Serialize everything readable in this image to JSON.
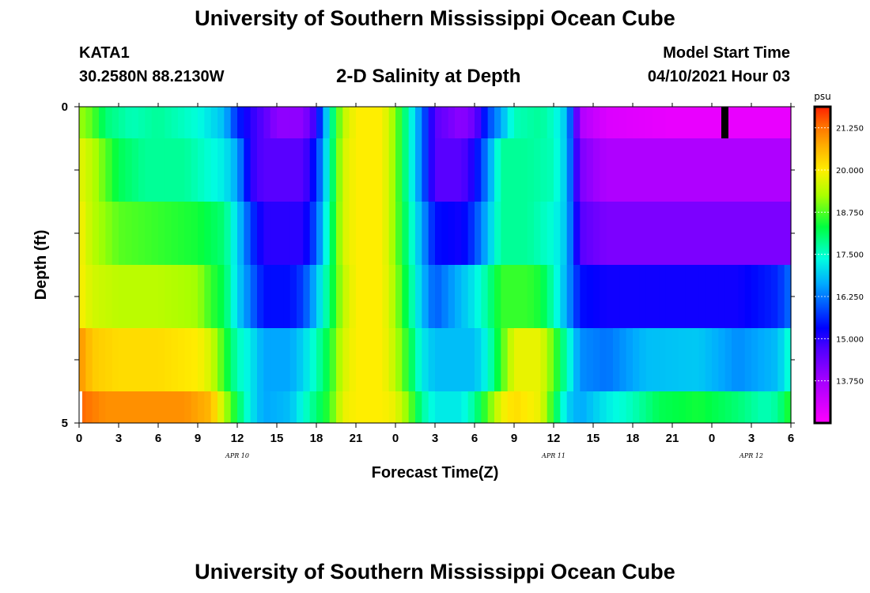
{
  "header": {
    "title": "University of Southern Mississippi Ocean Cube",
    "station": "KATA1",
    "coordinates": "30.2580N  88.2130W",
    "plot_title": "2-D Salinity at Depth",
    "start_label": "Model Start Time",
    "start_time": "04/10/2021 Hour 03"
  },
  "footer": {
    "title": "University of Southern Mississippi Ocean Cube"
  },
  "chart_data": {
    "type": "heatmap",
    "title": "2-D Salinity at Depth",
    "xlabel": "Forecast Time(Z)",
    "ylabel": "Depth (ft)",
    "x_ticks": [
      "0",
      "3",
      "6",
      "9",
      "12",
      "15",
      "18",
      "21",
      "0",
      "3",
      "6",
      "9",
      "12",
      "15",
      "18",
      "21",
      "0",
      "3",
      "6"
    ],
    "date_labels": [
      {
        "label": "APR  10",
        "hour_index": 12
      },
      {
        "label": "APR  11",
        "hour_index": 36
      },
      {
        "label": "APR  12",
        "hour_index": 51
      }
    ],
    "y_ticks": [
      "0",
      "5"
    ],
    "ylim": [
      0,
      5
    ],
    "xlim_hours": [
      0,
      54
    ],
    "colorbar": {
      "unit": "psu",
      "min": 12.5,
      "max": 21.875,
      "tick_labels": [
        "21.250",
        "20.000",
        "18.750",
        "17.500",
        "16.250",
        "15.000",
        "13.750"
      ],
      "tick_values": [
        21.25,
        20.0,
        18.75,
        17.5,
        16.25,
        15.0,
        13.75
      ]
    },
    "layers": [
      {
        "depth_range": "0-0.5",
        "key": [
          [
            0,
            19.2
          ],
          [
            1,
            18.8
          ],
          [
            2,
            18.0
          ],
          [
            4,
            17.6
          ],
          [
            6,
            17.8
          ],
          [
            9,
            17.4
          ],
          [
            11,
            16.8
          ],
          [
            12,
            15.6
          ],
          [
            13,
            15.0
          ],
          [
            14,
            14.6
          ],
          [
            15,
            14.0
          ],
          [
            17,
            14.0
          ],
          [
            18,
            15.0
          ],
          [
            19,
            17.5
          ],
          [
            20,
            19.4
          ],
          [
            21,
            20.0
          ],
          [
            23,
            20.0
          ],
          [
            24,
            19.0
          ],
          [
            25,
            17.6
          ],
          [
            26,
            16.2
          ],
          [
            27,
            14.6
          ],
          [
            29,
            14.0
          ],
          [
            30,
            14.4
          ],
          [
            31,
            15.8
          ],
          [
            32,
            16.6
          ],
          [
            33,
            17.6
          ],
          [
            35,
            17.8
          ],
          [
            36,
            17.5
          ],
          [
            37,
            16.8
          ],
          [
            37.6,
            15.0
          ],
          [
            38,
            13.6
          ],
          [
            40,
            13.0
          ],
          [
            45,
            12.8
          ],
          [
            49,
            12.8
          ],
          [
            54,
            12.8
          ]
        ]
      },
      {
        "depth_range": "0.5-1.5",
        "key": [
          [
            0,
            19.8
          ],
          [
            1,
            19.4
          ],
          [
            2,
            18.8
          ],
          [
            3,
            18.2
          ],
          [
            5,
            17.8
          ],
          [
            8,
            17.8
          ],
          [
            11,
            17.2
          ],
          [
            12,
            16.6
          ],
          [
            13,
            15.0
          ],
          [
            14,
            14.6
          ],
          [
            17,
            14.6
          ],
          [
            18,
            15.6
          ],
          [
            19,
            17.6
          ],
          [
            20,
            19.6
          ],
          [
            21,
            20.0
          ],
          [
            23,
            20.0
          ],
          [
            24,
            19.0
          ],
          [
            25,
            17.6
          ],
          [
            26,
            16.2
          ],
          [
            27,
            14.6
          ],
          [
            29,
            14.6
          ],
          [
            30,
            15.2
          ],
          [
            31,
            16.4
          ],
          [
            32,
            17.8
          ],
          [
            34,
            17.8
          ],
          [
            36,
            17.6
          ],
          [
            37,
            16.8
          ],
          [
            38,
            14.2
          ],
          [
            40,
            13.6
          ],
          [
            54,
            13.6
          ]
        ]
      },
      {
        "depth_range": "1.5-2.5",
        "key": [
          [
            0,
            20.0
          ],
          [
            1,
            19.4
          ],
          [
            3,
            18.8
          ],
          [
            6,
            18.6
          ],
          [
            9,
            18.4
          ],
          [
            11,
            18.0
          ],
          [
            12,
            17.0
          ],
          [
            13,
            15.8
          ],
          [
            14,
            15.0
          ],
          [
            17,
            15.0
          ],
          [
            18,
            16.0
          ],
          [
            19,
            17.8
          ],
          [
            20,
            19.6
          ],
          [
            21,
            20.0
          ],
          [
            23,
            20.0
          ],
          [
            24,
            19.0
          ],
          [
            25,
            17.8
          ],
          [
            26,
            16.6
          ],
          [
            27,
            15.4
          ],
          [
            29,
            15.2
          ],
          [
            30,
            15.8
          ],
          [
            31,
            16.8
          ],
          [
            32,
            17.8
          ],
          [
            34,
            17.8
          ],
          [
            36,
            17.4
          ],
          [
            37,
            16.8
          ],
          [
            38,
            14.6
          ],
          [
            40,
            14.2
          ],
          [
            54,
            14.2
          ]
        ]
      },
      {
        "depth_range": "2.5-3.5",
        "key": [
          [
            0,
            20.0
          ],
          [
            1,
            19.6
          ],
          [
            3,
            19.4
          ],
          [
            6,
            19.4
          ],
          [
            9,
            19.2
          ],
          [
            10,
            18.6
          ],
          [
            11,
            18.2
          ],
          [
            12,
            17.0
          ],
          [
            13,
            16.2
          ],
          [
            14,
            15.4
          ],
          [
            16,
            15.4
          ],
          [
            17,
            15.8
          ],
          [
            18,
            16.8
          ],
          [
            19,
            18.0
          ],
          [
            20,
            19.4
          ],
          [
            21,
            20.0
          ],
          [
            23,
            20.0
          ],
          [
            24,
            19.2
          ],
          [
            25,
            18.0
          ],
          [
            26,
            16.8
          ],
          [
            27,
            16.0
          ],
          [
            28,
            16.4
          ],
          [
            29,
            16.8
          ],
          [
            30,
            17.2
          ],
          [
            31,
            17.8
          ],
          [
            32,
            18.6
          ],
          [
            34,
            18.6
          ],
          [
            35,
            18.4
          ],
          [
            36,
            17.6
          ],
          [
            37,
            16.6
          ],
          [
            38,
            15.4
          ],
          [
            40,
            15.2
          ],
          [
            50,
            15.2
          ],
          [
            53,
            15.6
          ],
          [
            54,
            16.2
          ]
        ]
      },
      {
        "depth_range": "3.5-4.5",
        "key": [
          [
            0,
            21.0
          ],
          [
            1,
            20.4
          ],
          [
            3,
            20.2
          ],
          [
            6,
            20.2
          ],
          [
            9,
            20.0
          ],
          [
            10,
            19.6
          ],
          [
            11,
            18.6
          ],
          [
            12,
            17.6
          ],
          [
            13,
            17.2
          ],
          [
            14,
            16.6
          ],
          [
            16,
            16.6
          ],
          [
            17,
            17.0
          ],
          [
            18,
            17.6
          ],
          [
            19,
            18.4
          ],
          [
            20,
            19.6
          ],
          [
            21,
            20.0
          ],
          [
            23,
            20.0
          ],
          [
            24,
            19.4
          ],
          [
            25,
            18.4
          ],
          [
            26,
            17.2
          ],
          [
            27,
            16.8
          ],
          [
            30,
            16.8
          ],
          [
            31,
            17.4
          ],
          [
            32,
            18.6
          ],
          [
            33,
            19.8
          ],
          [
            35,
            19.8
          ],
          [
            36,
            18.8
          ],
          [
            37,
            17.6
          ],
          [
            38,
            16.4
          ],
          [
            40,
            16.2
          ],
          [
            43,
            16.8
          ],
          [
            47,
            16.9
          ],
          [
            50,
            16.4
          ],
          [
            53,
            16.8
          ],
          [
            54,
            17.6
          ]
        ]
      },
      {
        "depth_range": "4.5-5",
        "key": [
          [
            0,
            21.4
          ],
          [
            2,
            21.0
          ],
          [
            5,
            21.0
          ],
          [
            8,
            21.0
          ],
          [
            10,
            20.6
          ],
          [
            11,
            19.4
          ],
          [
            12,
            18.2
          ],
          [
            13,
            17.2
          ],
          [
            14,
            16.6
          ],
          [
            16,
            16.8
          ],
          [
            17,
            17.4
          ],
          [
            18,
            18.0
          ],
          [
            19,
            18.6
          ],
          [
            20,
            19.8
          ],
          [
            21,
            20.0
          ],
          [
            23,
            20.0
          ],
          [
            24,
            19.8
          ],
          [
            25,
            19.0
          ],
          [
            26,
            17.8
          ],
          [
            27,
            17.2
          ],
          [
            29,
            17.2
          ],
          [
            30,
            17.8
          ],
          [
            31,
            18.8
          ],
          [
            32,
            19.8
          ],
          [
            33,
            20.2
          ],
          [
            35,
            19.8
          ],
          [
            36,
            18.4
          ],
          [
            37,
            17.0
          ],
          [
            38,
            16.6
          ],
          [
            40,
            17.2
          ],
          [
            42,
            17.6
          ],
          [
            44,
            18.2
          ],
          [
            47,
            18.4
          ],
          [
            50,
            18.0
          ],
          [
            52,
            17.6
          ],
          [
            53,
            17.8
          ],
          [
            54,
            18.6
          ]
        ]
      }
    ]
  }
}
